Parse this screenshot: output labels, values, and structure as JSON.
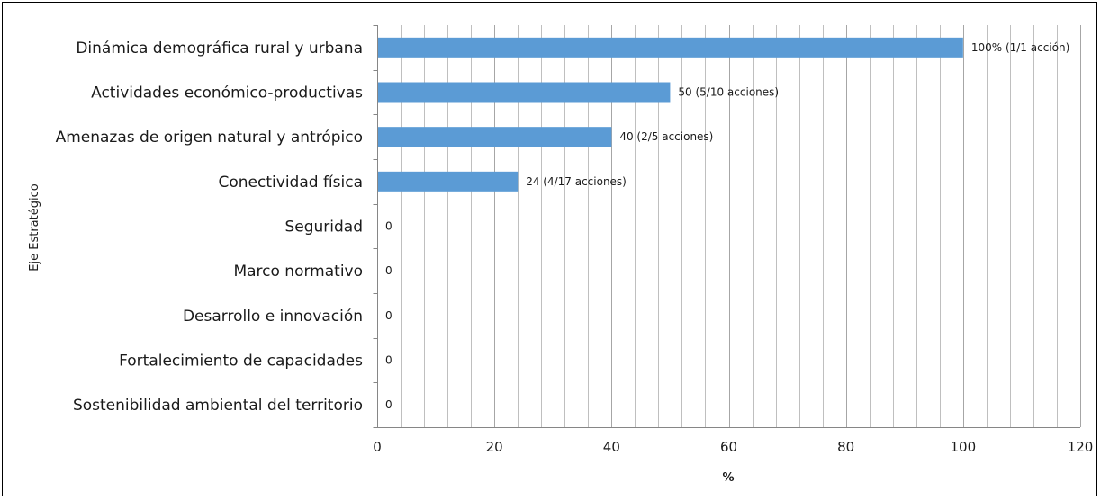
{
  "chart_data": {
    "type": "bar",
    "orientation": "horizontal",
    "title": "",
    "xlabel": "%",
    "ylabel": "Eje Estratégico",
    "xlim": [
      0,
      120
    ],
    "x_ticks": [
      0,
      20,
      40,
      60,
      80,
      100,
      120
    ],
    "minor_gridline_step": 4,
    "grid": "vertical",
    "legend": "none",
    "categories": [
      "Dinámica demográfica rural y urbana",
      "Actividades económico-productivas",
      "Amenazas de origen natural y antrópico",
      "Conectividad física",
      "Seguridad",
      "Marco normativo",
      "Desarrollo e innovación",
      "Fortalecimiento de capacidades",
      "Sostenibilidad ambiental del territorio"
    ],
    "values": [
      100,
      50,
      40,
      24,
      0,
      0,
      0,
      0,
      0
    ],
    "data_labels": [
      "100% (1/1 acción)",
      "50 (5/10 acciones)",
      "40 (2/5 acciones)",
      "24 (4/17 acciones)",
      "0",
      "0",
      "0",
      "0",
      "0"
    ],
    "bar_color": "#5b9bd5",
    "gridline_color": "#bfbfbf",
    "axis_color": "#868686"
  }
}
